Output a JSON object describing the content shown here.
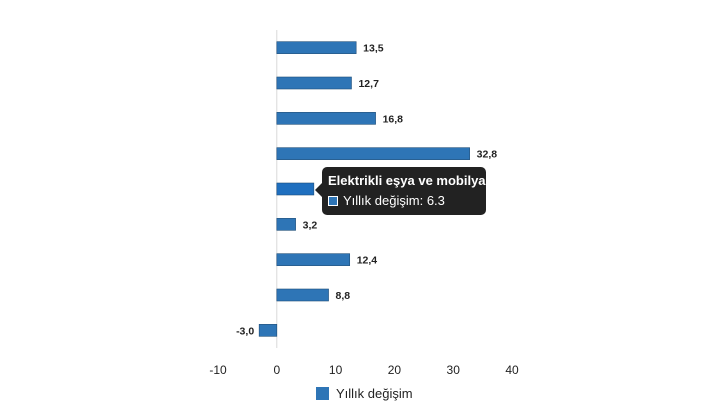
{
  "chart_data": {
    "type": "bar",
    "orientation": "horizontal",
    "categories": [
      "",
      "",
      "",
      "",
      "Elektrikli eşya ve mobilya",
      "",
      "",
      "",
      ""
    ],
    "series": [
      {
        "name": "Yıllık değişim",
        "values": [
          13.5,
          12.7,
          16.8,
          32.8,
          6.3,
          3.2,
          12.4,
          8.8,
          -3.0
        ],
        "labels": [
          "13,5",
          "12,7",
          "16,8",
          "32,8",
          "6,3",
          "3,2",
          "12,4",
          "8,8",
          "-3,0"
        ]
      }
    ],
    "xlim": [
      -10,
      40
    ],
    "xticks": [
      "-10",
      "0",
      "10",
      "20",
      "30",
      "40"
    ],
    "grid": false,
    "legend_position": "bottom",
    "highlighted_index": 4
  },
  "colors": {
    "bar": "#2e75b6",
    "bar_highlight": "#1f6fbf",
    "bar_edge": "#1f4e79",
    "axis": "#d9d9d9",
    "text": "#222222"
  },
  "tooltip": {
    "title": "Elektrikli eşya ve mobilya",
    "label": "Yıllık değişim",
    "value": "6.3"
  },
  "legend": {
    "label": "Yıllık değişim"
  }
}
